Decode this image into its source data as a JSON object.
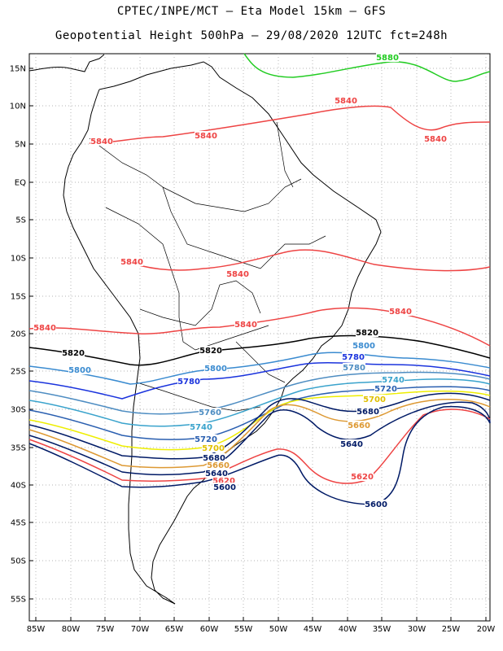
{
  "header": {
    "line1": "CPTEC/INPE/MCT –  Eta Model 15km – GFS",
    "line2": "Geopotential Height 500hPa – 29/08/2020 12UTC fct=248h"
  },
  "axes": {
    "lat_labels": [
      "15N",
      "10N",
      "5N",
      "EQ",
      "5S",
      "10S",
      "15S",
      "20S",
      "25S",
      "30S",
      "35S",
      "40S",
      "45S",
      "50S",
      "55S"
    ],
    "lon_labels": [
      "85W",
      "80W",
      "75W",
      "70W",
      "65W",
      "60W",
      "55W",
      "50W",
      "45W",
      "40W",
      "35W",
      "30W",
      "25W",
      "20W"
    ]
  },
  "colors": {
    "c5880": "#22cc22",
    "c5840": "#ee4444",
    "c5820": "#000000",
    "c5800": "#3a8bd0",
    "c5780": "#1a33dd",
    "c5760": "#4e8dc2",
    "c5740": "#3aa3cc",
    "c5720": "#2a5fb0",
    "c5700": "#eeee00",
    "c5680": "#001a66",
    "c5660": "#dd9933",
    "c5620": "#ee4444",
    "c5600": "#001a66"
  },
  "contour_labels": [
    {
      "id": "l5880",
      "text": "5880"
    },
    {
      "id": "l5840a",
      "text": "5840"
    },
    {
      "id": "l5840b",
      "text": "5840"
    },
    {
      "id": "l5840c",
      "text": "5840"
    },
    {
      "id": "l5840d",
      "text": "5840"
    },
    {
      "id": "l5840e",
      "text": "5840"
    },
    {
      "id": "l5840f",
      "text": "5840"
    },
    {
      "id": "l5840g",
      "text": "5840"
    },
    {
      "id": "l5840h",
      "text": "5840"
    },
    {
      "id": "l5840i",
      "text": "5840"
    },
    {
      "id": "l5820a",
      "text": "5820"
    },
    {
      "id": "l5820b",
      "text": "5820"
    },
    {
      "id": "l5820c",
      "text": "5820"
    },
    {
      "id": "l5800a",
      "text": "5800"
    },
    {
      "id": "l5800b",
      "text": "5800"
    },
    {
      "id": "l5800c",
      "text": "5800"
    },
    {
      "id": "l5780a",
      "text": "5780"
    },
    {
      "id": "l5780b",
      "text": "5780"
    },
    {
      "id": "l5780c",
      "text": "5780"
    },
    {
      "id": "l5760a",
      "text": "5760"
    },
    {
      "id": "l5760b",
      "text": "5760"
    },
    {
      "id": "l5740a",
      "text": "5740"
    },
    {
      "id": "l5740b",
      "text": "5740"
    },
    {
      "id": "l5720a",
      "text": "5720"
    },
    {
      "id": "l5720b",
      "text": "5720"
    },
    {
      "id": "l5700a",
      "text": "5700"
    },
    {
      "id": "l5700b",
      "text": "5700"
    },
    {
      "id": "l5680a",
      "text": "5680"
    },
    {
      "id": "l5680b",
      "text": "5680"
    },
    {
      "id": "l5660a",
      "text": "5660"
    },
    {
      "id": "l5660b",
      "text": "5660"
    },
    {
      "id": "l5640a",
      "text": "5640"
    },
    {
      "id": "l5640b",
      "text": "5640"
    },
    {
      "id": "l5620a",
      "text": "5620"
    },
    {
      "id": "l5620b",
      "text": "5620"
    },
    {
      "id": "l5600a",
      "text": "5600"
    },
    {
      "id": "l5600b",
      "text": "5600"
    }
  ]
}
